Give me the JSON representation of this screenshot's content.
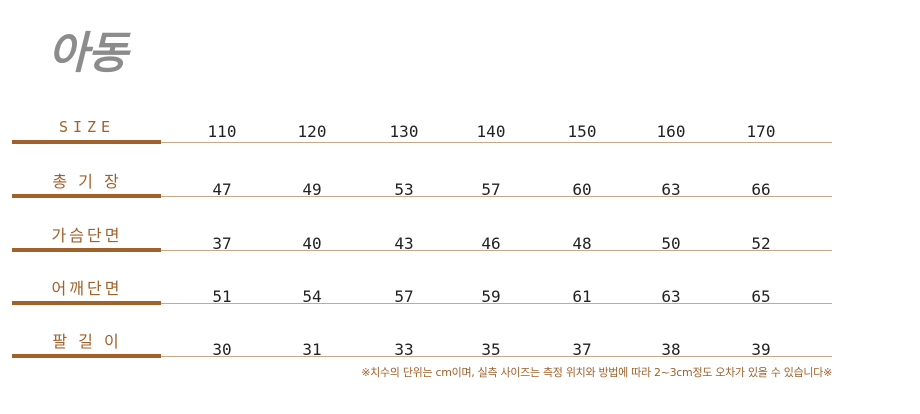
{
  "title": "아동",
  "table": {
    "rows": [
      {
        "label": "SIZE",
        "values": [
          "110",
          "120",
          "130",
          "140",
          "150",
          "160",
          "170"
        ]
      },
      {
        "label": "총 기 장",
        "values": [
          "47",
          "49",
          "53",
          "57",
          "60",
          "63",
          "66"
        ]
      },
      {
        "label": "가슴단면",
        "values": [
          "37",
          "40",
          "43",
          "46",
          "48",
          "50",
          "52"
        ]
      },
      {
        "label": "어깨단면",
        "values": [
          "51",
          "54",
          "57",
          "59",
          "61",
          "63",
          "65"
        ]
      },
      {
        "label": "팔 길 이",
        "values": [
          "30",
          "31",
          "33",
          "35",
          "37",
          "38",
          "39"
        ]
      }
    ]
  },
  "note": "※치수의 단위는 cm이며, 실측 사이즈는 측정 위치와 방법에 따라 2~3cm정도 오차가 있을 수 있습니다※",
  "colors": {
    "accent": "#a0612a",
    "divider": "#c9a88a",
    "title": "#8c8c8c",
    "text": "#222222"
  }
}
